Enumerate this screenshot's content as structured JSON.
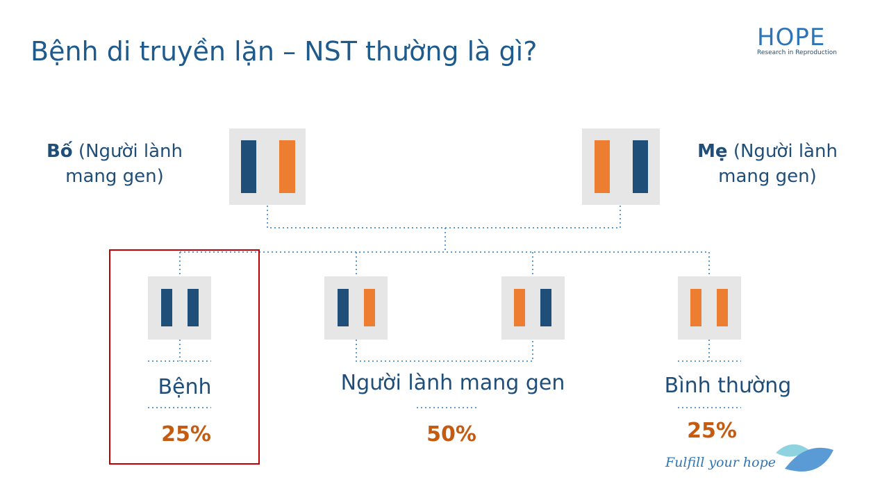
{
  "title": "Bệnh di truyền lặn – NST thường là gì?",
  "logo": {
    "name": "HOPE",
    "tagline": "Research in Reproduction"
  },
  "parents": [
    {
      "label": "Bố",
      "note": "(Người lành mang gen)"
    },
    {
      "label": "Mẹ",
      "note": "(Người lành mang gen)"
    }
  ],
  "outcomes": [
    {
      "label": "Bệnh",
      "percent": "25%"
    },
    {
      "label": "Người lành mang gen",
      "percent": "50%"
    },
    {
      "label": "Bình thường",
      "percent": "25%"
    }
  ],
  "slogan": "Fulfill your hope"
}
